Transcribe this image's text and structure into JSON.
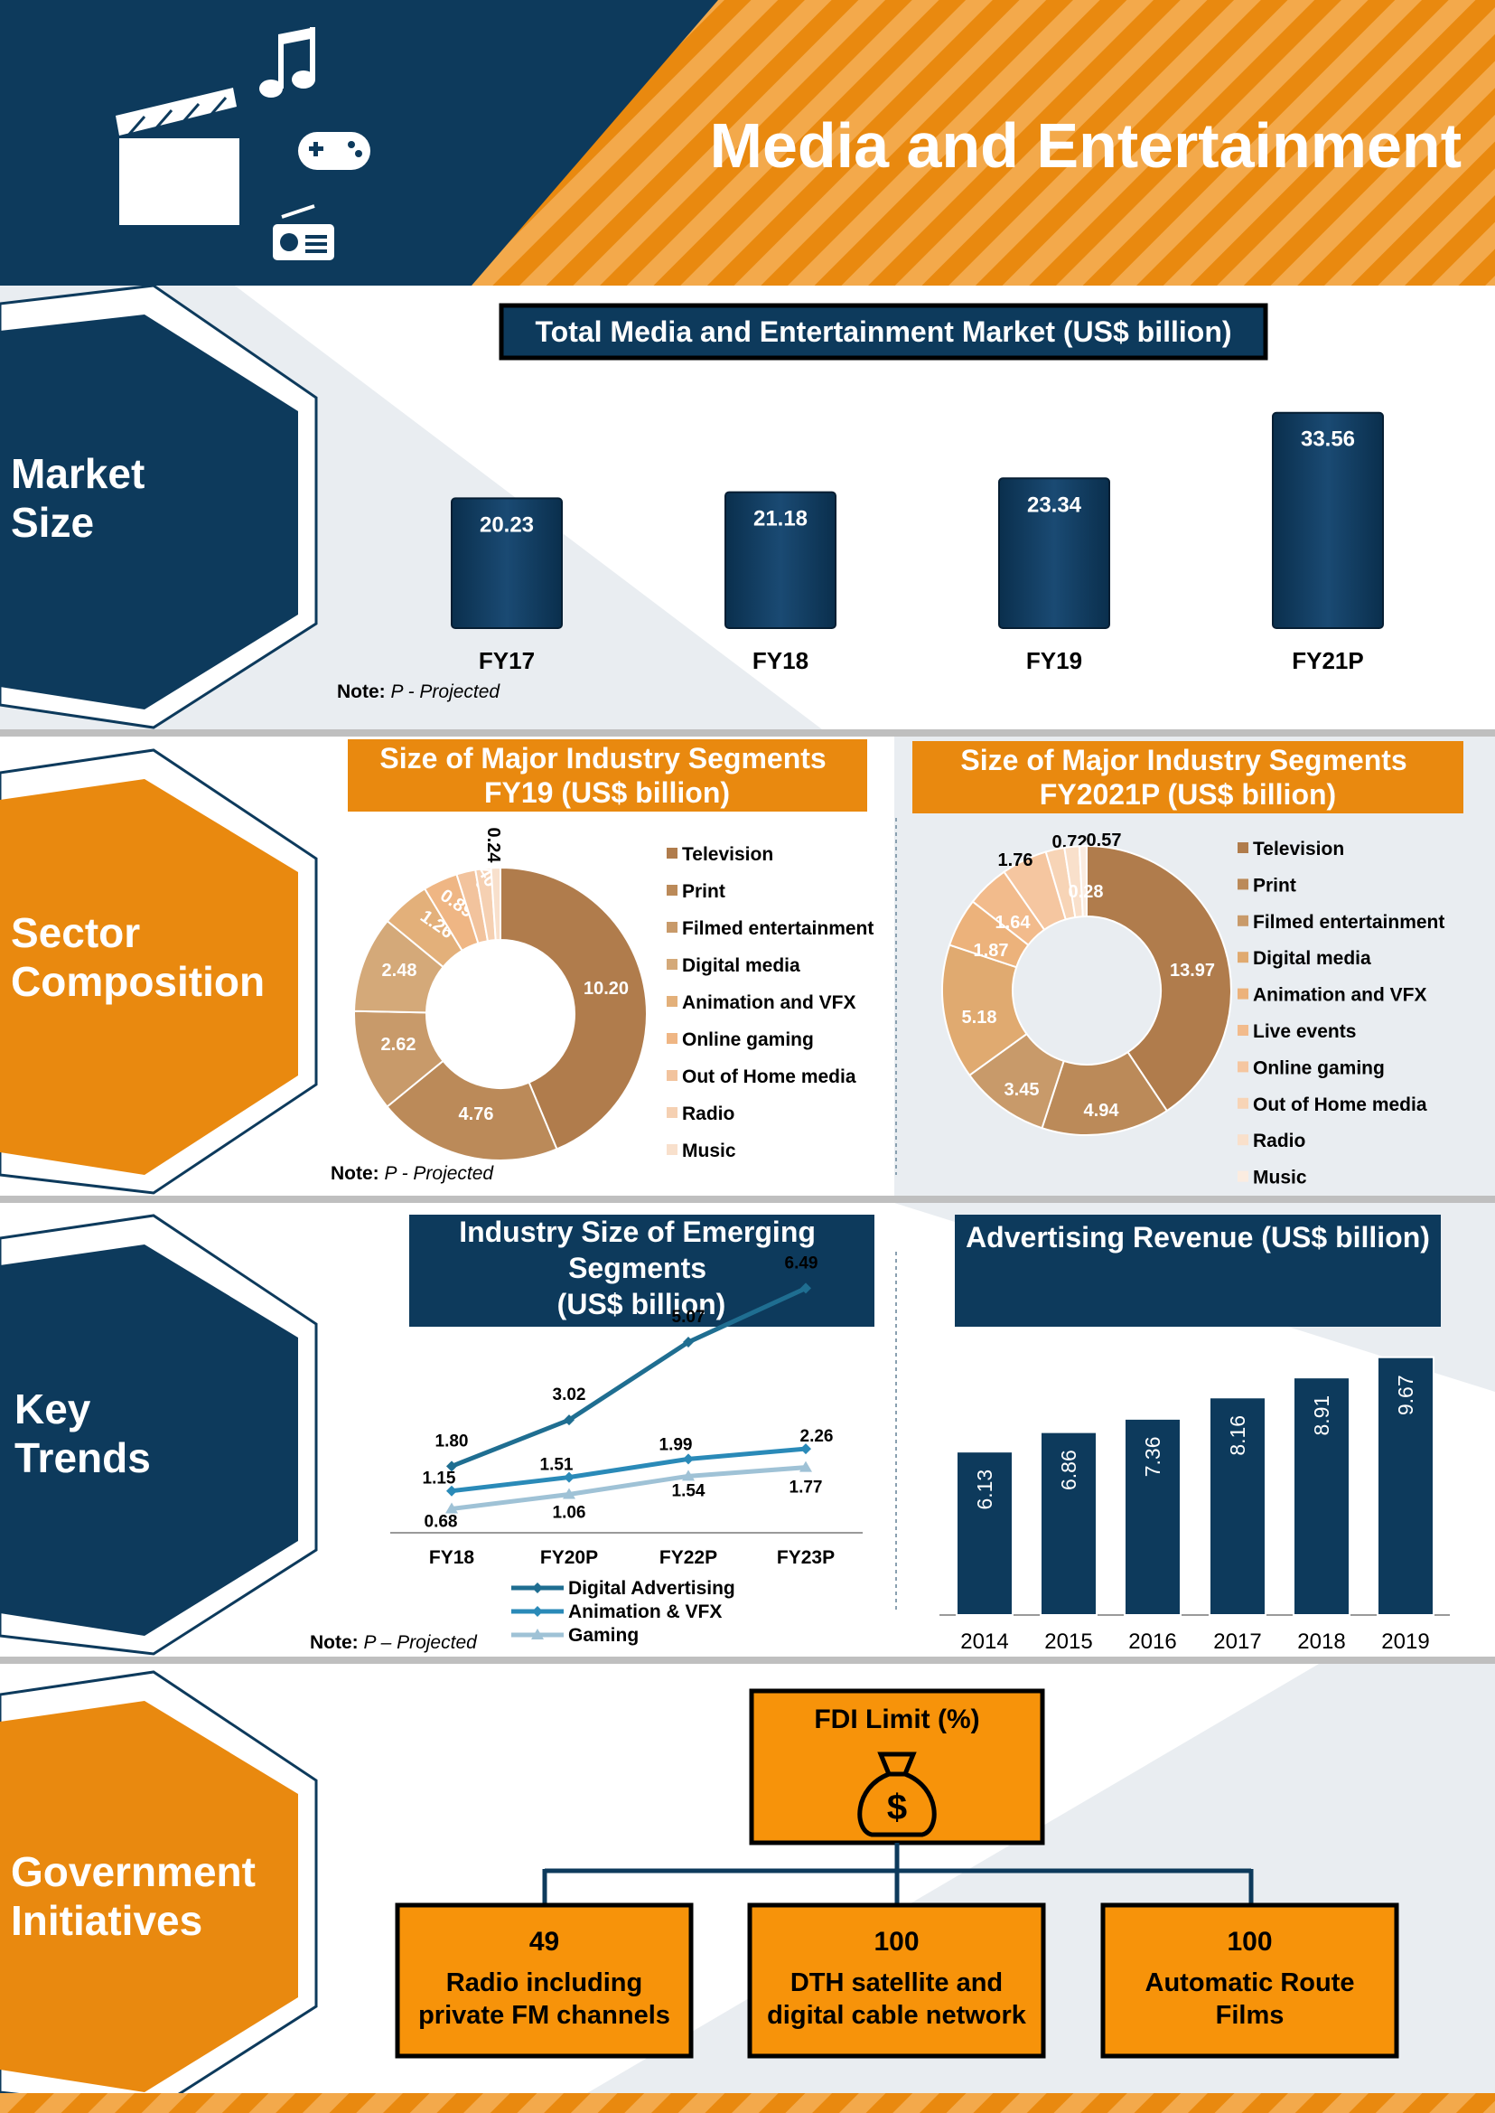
{
  "header": {
    "title": "Media and Entertainment",
    "icons": [
      "film-clapper-icon",
      "music-note-icon",
      "game-controller-icon",
      "radio-icon"
    ],
    "colors": {
      "navy": "#0d3a5c",
      "orange": "#e9890f",
      "stripe": "#f3a94b"
    }
  },
  "sections": {
    "market_size": "Market Size",
    "sector_composition": "Sector Composition",
    "key_trends": "Key Trends",
    "government_initiatives": "Government Initiatives"
  },
  "notes": {
    "market": "Note: P - Projected",
    "sector": "Note: P - Projected",
    "trends": "Note: P – Projected"
  },
  "chart_data": [
    {
      "type": "bar",
      "title": "Total Media and Entertainment Market (US$ billion)",
      "categories": [
        "FY17",
        "FY18",
        "FY19",
        "FY21P"
      ],
      "values": [
        20.23,
        21.18,
        23.34,
        33.56
      ],
      "value_labels": [
        "20.23",
        "21.18",
        "23.34",
        "33.56"
      ]
    },
    {
      "type": "pie",
      "title": "Size of Major Industry Segments FY19 (US$ billion)",
      "labels": [
        "Television",
        "Print",
        "Filmed entertainment",
        "Digital media",
        "Animation and VFX",
        "Online gaming",
        "Out of Home media",
        "Radio",
        "Music"
      ],
      "values": [
        10.2,
        4.76,
        2.62,
        2.48,
        1.26,
        0.89,
        0.49,
        0.4,
        0.24
      ],
      "value_labels": [
        "10.20",
        "4.76",
        "2.62",
        "2.48",
        "1.26",
        "0.89",
        "0.49",
        "0.40",
        "0.24"
      ],
      "colors": [
        "#b07c4c",
        "#bb8a59",
        "#c89a6a",
        "#d4a979",
        "#e3b07a",
        "#efb684",
        "#f2c39d",
        "#f5d0b2",
        "#f8e0cc"
      ]
    },
    {
      "type": "pie",
      "title": "Size of Major Industry Segments FY2021P (US$ billion)",
      "labels": [
        "Television",
        "Print",
        "Filmed entertainment",
        "Digital media",
        "Animation and VFX",
        "Live events",
        "Online gaming",
        "Out of Home media",
        "Radio",
        "Music"
      ],
      "values": [
        13.97,
        4.94,
        3.45,
        5.18,
        1.87,
        1.64,
        1.76,
        0.72,
        0.57,
        0.28
      ],
      "value_labels": [
        "13.97",
        "4.94",
        "3.45",
        "5.18",
        "1.87",
        "1.64",
        "1.76",
        "0.72",
        "0.57",
        "0.28"
      ],
      "colors": [
        "#b07c4c",
        "#bb8a59",
        "#c89a6a",
        "#e0aa70",
        "#ecb27b",
        "#f2bb8c",
        "#f5c6a0",
        "#f7d4b6",
        "#f9e0cb",
        "#fbece0"
      ]
    },
    {
      "type": "line",
      "title": "Industry Size of Emerging Segments (US$ billion)",
      "categories": [
        "FY18",
        "FY20P",
        "FY22P",
        "FY23P"
      ],
      "series": [
        {
          "name": "Digital Advertising",
          "values": [
            1.8,
            3.02,
            5.07,
            6.49
          ],
          "value_labels": [
            "1.80",
            "3.02",
            "5.07",
            "6.49"
          ],
          "color": "#1f6e91"
        },
        {
          "name": "Animation & VFX",
          "values": [
            1.15,
            1.51,
            1.99,
            2.26
          ],
          "value_labels": [
            "1.15",
            "1.51",
            "1.99",
            "2.26"
          ],
          "color": "#2a8ab8"
        },
        {
          "name": "Gaming",
          "values": [
            0.68,
            1.06,
            1.54,
            1.77
          ],
          "value_labels": [
            "0.68",
            "1.06",
            "1.54",
            "1.77"
          ],
          "color": "#9fc2d6"
        }
      ]
    },
    {
      "type": "bar",
      "title": "Advertising Revenue (US$ billion)",
      "categories": [
        "2014",
        "2015",
        "2016",
        "2017",
        "2018",
        "2019"
      ],
      "values": [
        6.13,
        6.86,
        7.36,
        8.16,
        8.91,
        9.67
      ],
      "value_labels": [
        "6.13",
        "6.86",
        "7.36",
        "8.16",
        "8.91",
        "9.67"
      ]
    }
  ],
  "fdi": {
    "title": "FDI Limit (%)",
    "icon": "money-bag-icon",
    "items": [
      {
        "value": "49",
        "label_lines": [
          "Radio including",
          "private FM channels"
        ]
      },
      {
        "value": "100",
        "label_lines": [
          "DTH satellite and",
          "digital cable network"
        ]
      },
      {
        "value": "100",
        "label_lines": [
          "Automatic Route",
          "Films"
        ]
      }
    ]
  }
}
